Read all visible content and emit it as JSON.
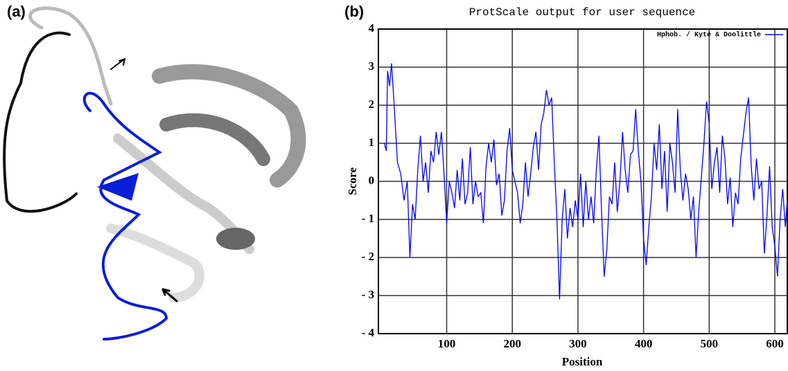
{
  "panel_labels": {
    "a": "(a)",
    "b": "(b)"
  },
  "chart_data": {
    "type": "line",
    "title": "ProtScale output for user sequence",
    "xlabel": "Position",
    "ylabel": "Score",
    "x": [
      5,
      8,
      10,
      13,
      16,
      20,
      25,
      30,
      35,
      40,
      44,
      48,
      52,
      56,
      60,
      64,
      68,
      72,
      76,
      80,
      84,
      88,
      92,
      96,
      100,
      104,
      108,
      112,
      116,
      120,
      124,
      128,
      132,
      136,
      140,
      144,
      148,
      152,
      156,
      160,
      164,
      168,
      172,
      176,
      180,
      184,
      188,
      192,
      196,
      200,
      204,
      208,
      212,
      216,
      220,
      224,
      228,
      232,
      236,
      240,
      244,
      248,
      252,
      256,
      260,
      264,
      268,
      272,
      276,
      280,
      284,
      288,
      292,
      296,
      300,
      304,
      308,
      312,
      316,
      320,
      324,
      328,
      332,
      336,
      340,
      344,
      348,
      352,
      356,
      360,
      364,
      368,
      372,
      376,
      380,
      384,
      388,
      392,
      396,
      400,
      404,
      408,
      412,
      416,
      420,
      424,
      428,
      432,
      436,
      440,
      444,
      448,
      452,
      456,
      460,
      464,
      468,
      472,
      476,
      480,
      484,
      488,
      492,
      496,
      500,
      504,
      508,
      512,
      516,
      520,
      524,
      528,
      532,
      536,
      540,
      544,
      548,
      552,
      556,
      560,
      564,
      568,
      572,
      576,
      580,
      584,
      588,
      592,
      596,
      600,
      604,
      608,
      612,
      616,
      619
    ],
    "series": [
      {
        "name": "Hphob. / Kyte & Doolittle",
        "color": "#0000ff",
        "values": [
          1.0,
          0.8,
          2.9,
          2.5,
          3.1,
          2.0,
          0.5,
          0.2,
          -0.5,
          0.0,
          -2.0,
          -0.6,
          -1.0,
          0.3,
          1.2,
          0.0,
          0.5,
          -0.3,
          0.8,
          0.5,
          1.3,
          0.7,
          1.3,
          0.2,
          -1.1,
          0.0,
          -0.3,
          -0.7,
          0.3,
          -0.5,
          0.6,
          -0.6,
          -0.3,
          0.9,
          -0.6,
          0.0,
          -0.4,
          -0.3,
          -1.1,
          0.4,
          1.0,
          0.5,
          1.1,
          -0.1,
          0.2,
          -0.9,
          -0.5,
          0.8,
          1.4,
          0.3,
          0.0,
          -0.3,
          -1.1,
          -0.6,
          0.5,
          -0.4,
          0.2,
          0.9,
          1.3,
          0.3,
          1.5,
          1.8,
          2.4,
          2.0,
          2.2,
          0.5,
          -1.0,
          -3.1,
          -1.0,
          -0.2,
          -1.5,
          -0.7,
          -1.2,
          -0.5,
          -1.0,
          0.2,
          -1.2,
          0.0,
          -1.0,
          -0.4,
          -1.1,
          0.3,
          1.2,
          -0.8,
          -2.5,
          -1.8,
          -0.4,
          -0.6,
          0.5,
          -0.8,
          0.0,
          1.3,
          0.3,
          -0.3,
          0.7,
          0.8,
          1.9,
          0.8,
          0.0,
          -1.5,
          -2.2,
          -1.2,
          -0.4,
          1.0,
          0.3,
          1.5,
          -0.2,
          0.8,
          -0.8,
          1.0,
          0.5,
          -0.3,
          1.9,
          0.3,
          -0.5,
          0.2,
          -0.2,
          -1.0,
          -0.4,
          -2.0,
          -0.8,
          0.1,
          1.0,
          2.1,
          1.5,
          -0.2,
          0.5,
          0.9,
          -0.3,
          1.2,
          0.6,
          -0.6,
          0.1,
          -1.2,
          -0.3,
          -0.6,
          0.6,
          1.2,
          1.8,
          2.2,
          0.4,
          -0.5,
          0.6,
          -0.2,
          0.0,
          -1.9,
          -0.9,
          0.4,
          -1.2,
          -1.7,
          -2.5,
          -1.0,
          -0.2,
          -1.2,
          -0.5
        ]
      }
    ],
    "xlim": [
      -4,
      619
    ],
    "ylim": [
      -4,
      4
    ],
    "xticks": [
      100,
      200,
      300,
      400,
      500,
      600
    ],
    "yticks": [
      {
        "value": -4,
        "label": "- 4"
      },
      {
        "value": -3,
        "label": "- 3"
      },
      {
        "value": -2,
        "label": "- 2"
      },
      {
        "value": -1,
        "label": "- 1"
      },
      0,
      1,
      2,
      3,
      4
    ],
    "grid": true,
    "legend": "top-right"
  }
}
